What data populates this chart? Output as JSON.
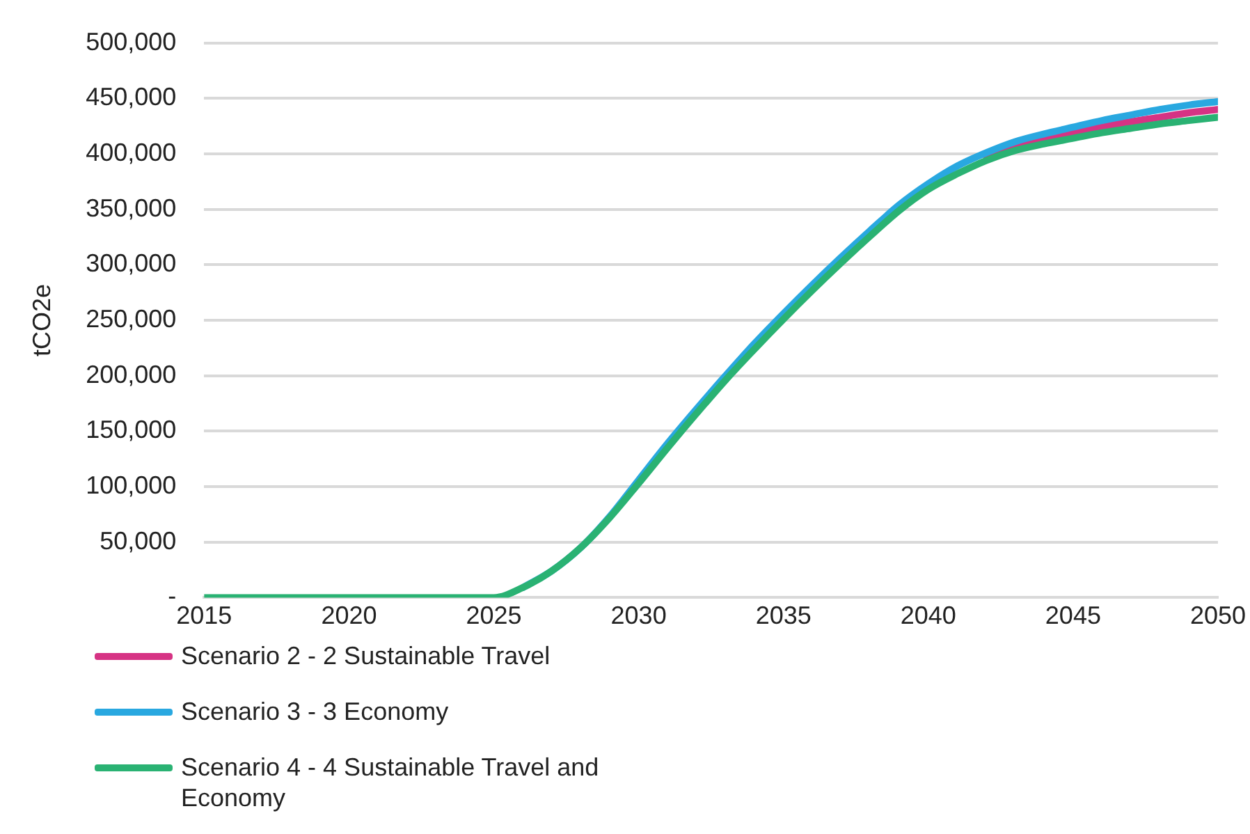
{
  "chart_data": {
    "type": "line",
    "ylabel": "tCO2e",
    "x": [
      2015,
      2016,
      2017,
      2018,
      2019,
      2020,
      2021,
      2022,
      2023,
      2024,
      2025,
      2026,
      2027,
      2028,
      2029,
      2030,
      2031,
      2032,
      2033,
      2034,
      2035,
      2036,
      2037,
      2038,
      2039,
      2040,
      2041,
      2042,
      2043,
      2044,
      2045,
      2046,
      2047,
      2048,
      2049,
      2050
    ],
    "series": [
      {
        "name": "Scenario 2 - 2 Sustainable Travel",
        "color": "#d63384",
        "values": [
          null,
          null,
          null,
          null,
          null,
          null,
          null,
          null,
          null,
          null,
          null,
          null,
          null,
          null,
          null,
          null,
          null,
          null,
          null,
          null,
          null,
          null,
          null,
          null,
          null,
          null,
          null,
          398000,
          407000,
          413000,
          419000,
          424000,
          429000,
          433000,
          437000,
          440000
        ]
      },
      {
        "name": "Scenario 3 - 3 Economy",
        "color": "#29a8e0",
        "values": [
          null,
          null,
          null,
          null,
          null,
          null,
          null,
          null,
          null,
          null,
          null,
          9000,
          24000,
          45000,
          73000,
          106000,
          139000,
          170000,
          200000,
          229000,
          256000,
          282000,
          307000,
          331000,
          354000,
          373000,
          389000,
          401000,
          411000,
          418000,
          424000,
          430000,
          435000,
          440000,
          444000,
          447000
        ]
      },
      {
        "name": "Scenario 4 - 4 Sustainable Travel and Economy",
        "color": "#2ab273",
        "values": [
          0,
          0,
          0,
          0,
          0,
          0,
          0,
          0,
          0,
          0,
          0,
          9000,
          24000,
          45000,
          72000,
          103000,
          135000,
          166000,
          196000,
          224000,
          251000,
          277000,
          302000,
          326000,
          349000,
          368000,
          382000,
          394000,
          403000,
          409000,
          414000,
          419000,
          423000,
          427000,
          430000,
          433000
        ]
      }
    ],
    "xlim": [
      2015,
      2050
    ],
    "xticks": [
      2015,
      2020,
      2025,
      2030,
      2035,
      2040,
      2045,
      2050
    ],
    "ylim": [
      0,
      500000
    ],
    "yticks": [
      {
        "value": 0,
        "label": "-"
      },
      {
        "value": 50000,
        "label": "50,000"
      },
      {
        "value": 100000,
        "label": "100,000"
      },
      {
        "value": 150000,
        "label": "150,000"
      },
      {
        "value": 200000,
        "label": "200,000"
      },
      {
        "value": 250000,
        "label": "250,000"
      },
      {
        "value": 300000,
        "label": "300,000"
      },
      {
        "value": 350000,
        "label": "350,000"
      },
      {
        "value": 400000,
        "label": "400,000"
      },
      {
        "value": 450000,
        "label": "450,000"
      },
      {
        "value": 500000,
        "label": "500,000"
      }
    ],
    "grid": "y",
    "legend": "bottom left",
    "marker": "none",
    "line_style": "solid"
  }
}
